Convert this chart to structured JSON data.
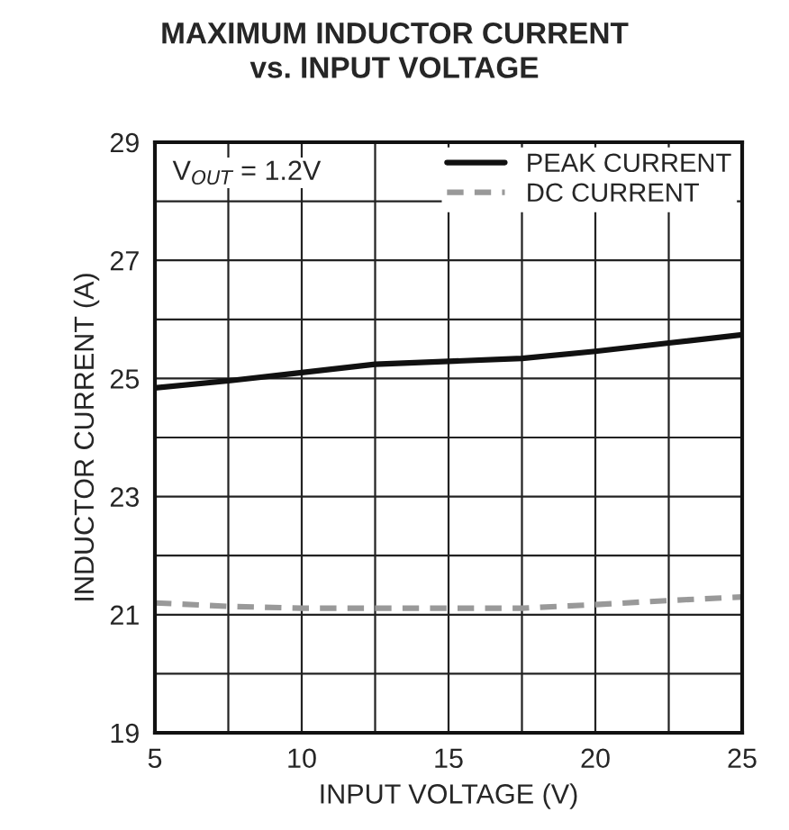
{
  "chart_data": {
    "type": "line",
    "title": "MAXIMUM INDUCTOR CURRENT\nvs. INPUT VOLTAGE",
    "xlabel": "INPUT VOLTAGE (V)",
    "ylabel": "INDUCTOR CURRENT (A)",
    "x": [
      5,
      7.5,
      10,
      12.5,
      15,
      17.5,
      20,
      22.5,
      25
    ],
    "series": [
      {
        "name": "PEAK CURRENT",
        "color": "#111111",
        "line_style": "solid",
        "values": [
          24.84,
          24.96,
          25.1,
          25.24,
          25.29,
          25.34,
          25.46,
          25.6,
          25.74
        ]
      },
      {
        "name": "DC CURRENT",
        "color": "#999999",
        "line_style": "dashed",
        "values": [
          21.2,
          21.14,
          21.11,
          21.11,
          21.11,
          21.11,
          21.17,
          21.24,
          21.3
        ]
      }
    ],
    "xlim": [
      5,
      25
    ],
    "ylim": [
      19,
      29
    ],
    "xticks": [
      5,
      {
        "value": 7.5,
        "label": null
      },
      10,
      {
        "value": 12.5,
        "label": null
      },
      15,
      {
        "value": 17.5,
        "label": null
      },
      20,
      {
        "value": 22.5,
        "label": null
      },
      25
    ],
    "yticks": [
      19,
      {
        "value": 20,
        "label": null
      },
      21,
      {
        "value": 22,
        "label": null
      },
      23,
      {
        "value": 24,
        "label": null
      },
      25,
      {
        "value": 26,
        "label": null
      },
      27,
      {
        "value": 28,
        "label": null
      },
      29
    ],
    "grid": true,
    "legend": "top right",
    "annotations": [
      "V$_{OUT}$ = 1.2V"
    ]
  }
}
